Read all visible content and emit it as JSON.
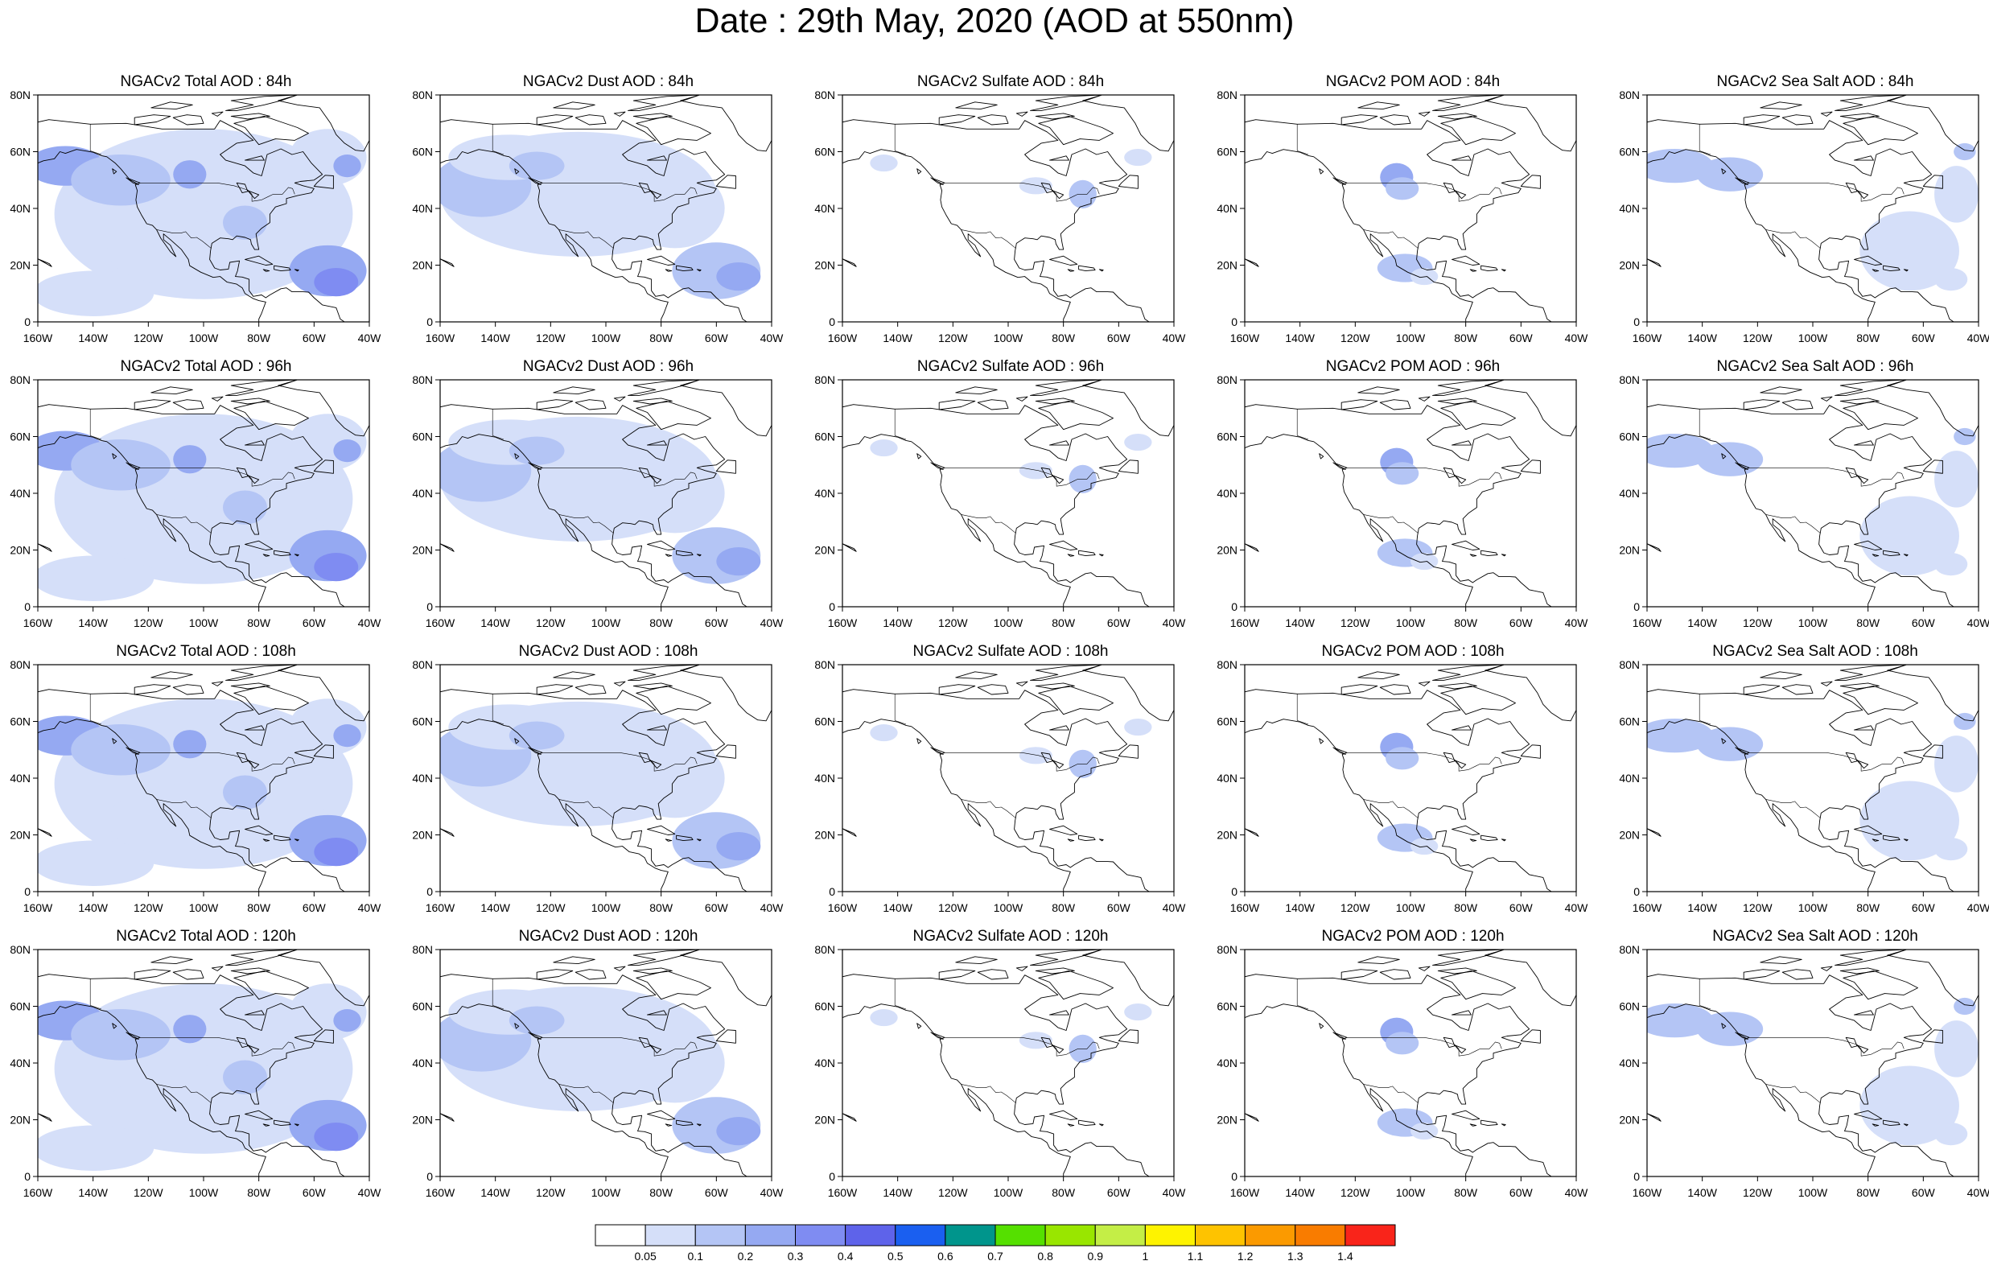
{
  "title": "Date : 29th May, 2020 (AOD at 550nm)",
  "panels": [
    {
      "title": "NGACv2 Total AOD : 84h",
      "species": "total",
      "lead": 84
    },
    {
      "title": "NGACv2 Dust AOD : 84h",
      "species": "dust",
      "lead": 84
    },
    {
      "title": "NGACv2 Sulfate AOD : 84h",
      "species": "sulfate",
      "lead": 84
    },
    {
      "title": "NGACv2 POM AOD : 84h",
      "species": "pom",
      "lead": 84
    },
    {
      "title": "NGACv2 Sea Salt AOD : 84h",
      "species": "seasalt",
      "lead": 84
    },
    {
      "title": "NGACv2 Total AOD : 96h",
      "species": "total",
      "lead": 96
    },
    {
      "title": "NGACv2 Dust AOD : 96h",
      "species": "dust",
      "lead": 96
    },
    {
      "title": "NGACv2 Sulfate AOD : 96h",
      "species": "sulfate",
      "lead": 96
    },
    {
      "title": "NGACv2 POM AOD : 96h",
      "species": "pom",
      "lead": 96
    },
    {
      "title": "NGACv2 Sea Salt AOD : 96h",
      "species": "seasalt",
      "lead": 96
    },
    {
      "title": "NGACv2 Total AOD : 108h",
      "species": "total",
      "lead": 108
    },
    {
      "title": "NGACv2 Dust AOD : 108h",
      "species": "dust",
      "lead": 108
    },
    {
      "title": "NGACv2 Sulfate AOD : 108h",
      "species": "sulfate",
      "lead": 108
    },
    {
      "title": "NGACv2 POM AOD : 108h",
      "species": "pom",
      "lead": 108
    },
    {
      "title": "NGACv2 Sea Salt AOD : 108h",
      "species": "seasalt",
      "lead": 108
    },
    {
      "title": "NGACv2 Total AOD : 120h",
      "species": "total",
      "lead": 120
    },
    {
      "title": "NGACv2 Dust AOD : 120h",
      "species": "dust",
      "lead": 120
    },
    {
      "title": "NGACv2 Sulfate AOD : 120h",
      "species": "sulfate",
      "lead": 120
    },
    {
      "title": "NGACv2 POM AOD : 120h",
      "species": "pom",
      "lead": 120
    },
    {
      "title": "NGACv2 Sea Salt  AOD : 120h",
      "species": "seasalt",
      "lead": 120
    }
  ],
  "x_ticks": [
    "160W",
    "140W",
    "120W",
    "100W",
    "80W",
    "60W",
    "40W"
  ],
  "y_ticks": [
    "0",
    "20N",
    "40N",
    "60N",
    "80N"
  ],
  "lon_range": [
    -160,
    -40
  ],
  "lat_range": [
    0,
    80
  ],
  "colorbar": {
    "labels": [
      "0.05",
      "0.1",
      "0.2",
      "0.3",
      "0.4",
      "0.5",
      "0.6",
      "0.7",
      "0.8",
      "0.9",
      "1",
      "1.1",
      "1.2",
      "1.3",
      "1.4"
    ],
    "colors": [
      "#ffffff",
      "#d5dff9",
      "#b4c5f5",
      "#95a9f2",
      "#7f8cf2",
      "#5e63ea",
      "#1a5ff0",
      "#00958c",
      "#55e000",
      "#99e600",
      "#c4ee46",
      "#fef300",
      "#fec300",
      "#fb9a00",
      "#f97c00",
      "#f9241a"
    ]
  }
}
